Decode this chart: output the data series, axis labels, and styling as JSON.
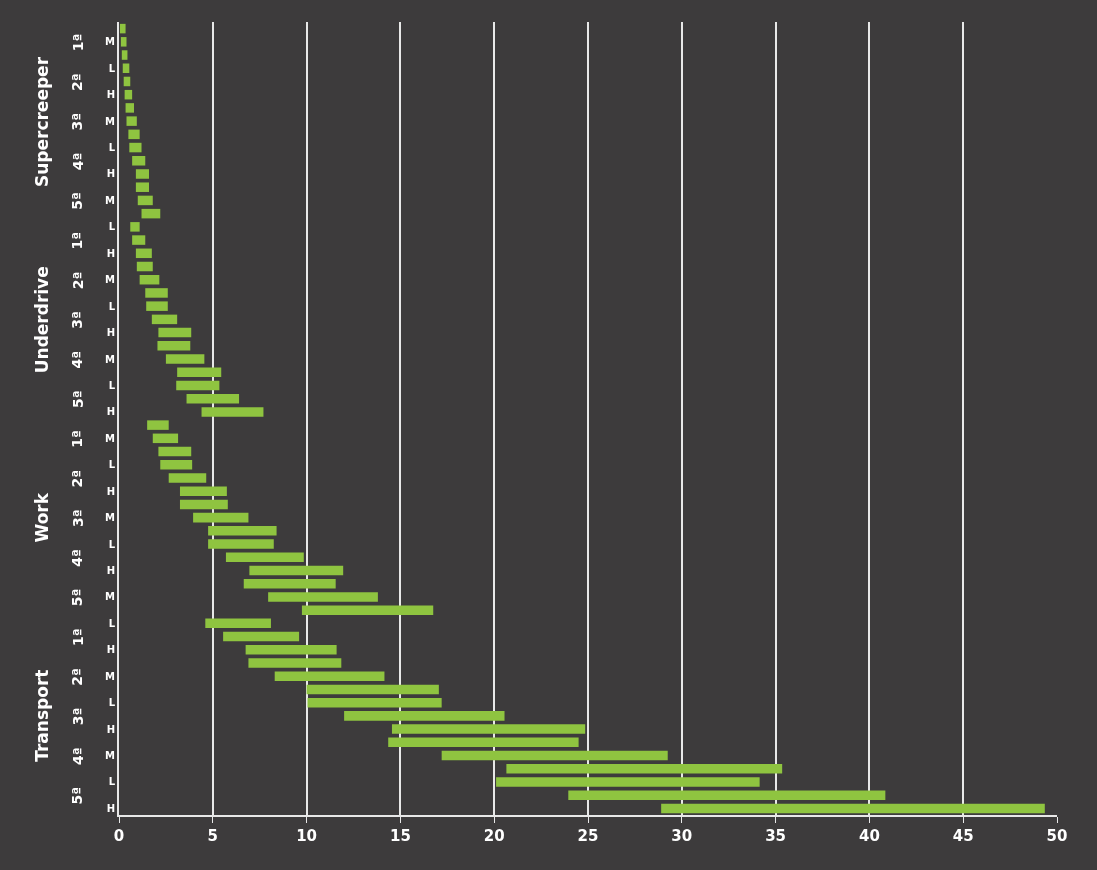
{
  "chart_data": {
    "type": "bar",
    "orientation": "horizontal",
    "categories": [
      null,
      "M",
      null,
      "L",
      null,
      "H",
      null,
      "M",
      null,
      "L",
      null,
      "H",
      null,
      "M",
      null,
      "L",
      null,
      "H",
      null,
      "M",
      null,
      "L",
      null,
      "H",
      null,
      "M",
      null,
      "L",
      null,
      "H",
      null,
      "M",
      null,
      "L",
      null,
      "H",
      null,
      "M",
      null,
      "L",
      null,
      "H",
      null,
      "M",
      null,
      "L",
      null,
      "H",
      null,
      "M",
      null,
      "L",
      null,
      "H",
      null,
      "M",
      null,
      "L",
      null,
      "H"
    ],
    "base": [
      0.05,
      0.1,
      0.15,
      0.2,
      0.25,
      0.3,
      0.35,
      0.4,
      0.5,
      0.55,
      0.7,
      0.9,
      0.9,
      1.0,
      1.2,
      0.6,
      0.7,
      0.9,
      0.95,
      1.1,
      1.4,
      1.45,
      1.75,
      2.1,
      2.05,
      2.5,
      3.1,
      3.05,
      3.6,
      4.4,
      1.5,
      1.8,
      2.1,
      2.2,
      2.65,
      3.25,
      3.25,
      3.95,
      4.75,
      4.75,
      5.7,
      6.95,
      6.65,
      7.95,
      9.75,
      4.6,
      5.55,
      6.75,
      6.9,
      8.3,
      10.0,
      10.05,
      12.0,
      14.55,
      14.35,
      17.2,
      20.65,
      20.1,
      23.95,
      28.9
    ],
    "values": [
      0.3,
      0.3,
      0.3,
      0.35,
      0.35,
      0.4,
      0.45,
      0.55,
      0.6,
      0.65,
      0.7,
      0.7,
      0.7,
      0.8,
      1.0,
      0.5,
      0.7,
      0.85,
      0.85,
      1.05,
      1.2,
      1.15,
      1.35,
      1.75,
      1.75,
      2.05,
      2.35,
      2.3,
      2.8,
      3.3,
      1.15,
      1.35,
      1.75,
      1.7,
      2.0,
      2.5,
      2.55,
      2.95,
      3.65,
      3.5,
      4.15,
      5.0,
      4.9,
      5.85,
      7.0,
      3.5,
      4.05,
      4.85,
      4.95,
      5.85,
      7.05,
      7.15,
      8.55,
      10.3,
      10.15,
      12.05,
      14.7,
      14.05,
      16.9,
      20.45
    ],
    "color": "#8fc440",
    "xlim": [
      0,
      50
    ],
    "xticks": [
      0,
      5,
      10,
      15,
      20,
      25,
      30,
      35,
      40,
      45,
      50
    ],
    "grid": "x",
    "annotations": [
      "Supercreeper",
      "1ª",
      "2ª",
      "3ª",
      "4ª",
      "5ª",
      "Underdrive",
      "1ª",
      "2ª",
      "3ª",
      "4ª",
      "5ª",
      "Work",
      "1ª",
      "2ª",
      "3ª",
      "4ª",
      "5ª",
      "Transport",
      "1ª",
      "2ª",
      "3ª",
      "4ª",
      "5ª"
    ]
  }
}
